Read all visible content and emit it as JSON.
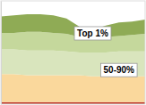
{
  "chart_data": {
    "type": "area",
    "stacked": true,
    "tick_labels": false,
    "categories": [
      null,
      null,
      null,
      null,
      null,
      null,
      null,
      null,
      null,
      null,
      null,
      null
    ],
    "ylim": [
      0,
      100
    ],
    "series": [
      {
        "color": "#c0392b",
        "values": [
          2,
          2,
          2,
          2,
          2,
          2,
          2,
          2,
          2,
          2,
          2,
          2
        ]
      },
      {
        "color": "#fad89c",
        "values": [
          27,
          27,
          26,
          26,
          26,
          26,
          26,
          25,
          25,
          25,
          25,
          25
        ]
      },
      {
        "name": "50-90%",
        "color": "#d9e5bd",
        "values": [
          24,
          24,
          24,
          24,
          24,
          23,
          22,
          23,
          23,
          24,
          24,
          24
        ]
      },
      {
        "color": "#c5d89c",
        "values": [
          16,
          16,
          18,
          18,
          17,
          17,
          15,
          14,
          15,
          15,
          16,
          17
        ]
      },
      {
        "name": "Top 1%",
        "color": "#8fab55",
        "values": [
          16,
          17,
          17,
          17,
          17,
          15,
          10,
          8,
          11,
          13,
          13,
          14
        ]
      }
    ]
  }
}
